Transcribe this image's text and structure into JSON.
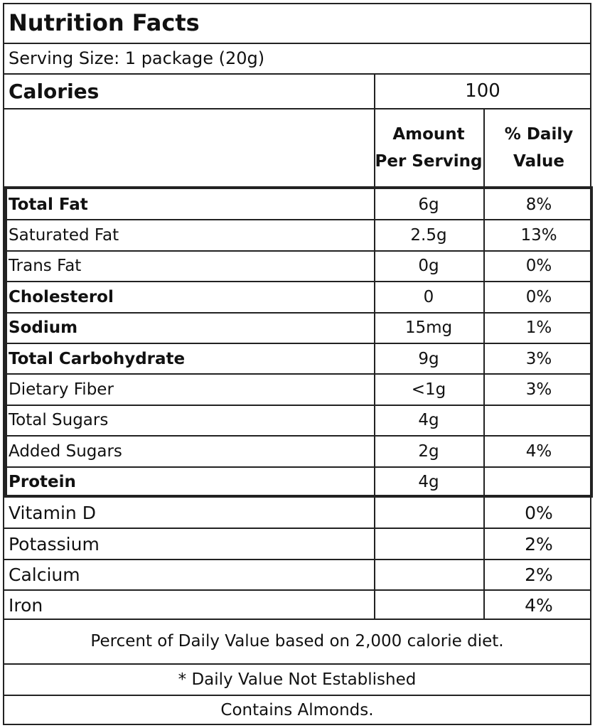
{
  "label": {
    "title": "Nutrition Facts",
    "serving_size": "Serving Size: 1 package (20g)",
    "calories_label": "Calories",
    "calories_value": "100",
    "col_amount_line1": "Amount",
    "col_amount_line2": "Per Serving",
    "col_dv_line1": "% Daily",
    "col_dv_line2": "Value"
  },
  "nutrients": [
    {
      "name": "Total Fat",
      "amount": "6g",
      "dv": "8%"
    },
    {
      "name": "Saturated Fat",
      "amount": "2.5g",
      "dv": "13%"
    },
    {
      "name": "Trans Fat",
      "amount": "0g",
      "dv": "0%"
    },
    {
      "name": "Cholesterol",
      "amount": "0",
      "dv": "0%"
    },
    {
      "name": "Sodium",
      "amount": "15mg",
      "dv": "1%"
    },
    {
      "name": "Total Carbohydrate",
      "amount": "9g",
      "dv": "3%"
    },
    {
      "name": "Dietary Fiber",
      "amount": "<1g",
      "dv": "3%"
    },
    {
      "name": "Total Sugars",
      "amount": "4g",
      "dv": ""
    },
    {
      "name": "Added Sugars",
      "amount": "2g",
      "dv": "4%"
    },
    {
      "name": "Protein",
      "amount": "4g",
      "dv": ""
    }
  ],
  "vitamins": [
    {
      "name": "Vitamin D",
      "amount": "",
      "dv": "0%"
    },
    {
      "name": "Potassium",
      "amount": "",
      "dv": "2%"
    },
    {
      "name": "Calcium",
      "amount": "",
      "dv": "2%"
    },
    {
      "name": "Iron",
      "amount": "",
      "dv": "4%"
    }
  ],
  "footer": {
    "dv_note": "Percent of Daily Value based on 2,000 calorie diet.",
    "not_established": "* Daily Value Not Established",
    "allergen": "Contains Almonds."
  }
}
